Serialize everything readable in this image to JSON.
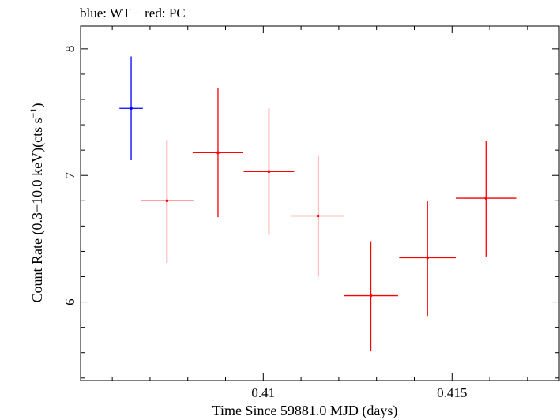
{
  "chart_data": {
    "type": "scatter",
    "title": "blue: WT − red: PC",
    "xlabel": "Time Since 59881.0 MJD (days)",
    "ylabel_main": "Count Rate (0.3−10.0 keV)(cts s",
    "ylabel_sup": "−1",
    "ylabel_end": ")",
    "xlim": [
      0.40516,
      0.41784
    ],
    "ylim": [
      5.38,
      8.18
    ],
    "xticks": [
      {
        "value": 0.41,
        "label": "0.41"
      },
      {
        "value": 0.415,
        "label": "0.415"
      }
    ],
    "xminor_step": 0.001,
    "yticks": [
      {
        "value": 6,
        "label": "6"
      },
      {
        "value": 7,
        "label": "7"
      },
      {
        "value": 8,
        "label": "8"
      }
    ],
    "yminor_step": 0.2,
    "grid": false,
    "series": [
      {
        "color": "#0000ff",
        "points": [
          {
            "x": 0.4065,
            "xerr": 0.00031,
            "y": 7.53,
            "yerr_lo": 0.41,
            "yerr_hi": 0.41
          }
        ]
      },
      {
        "color": "#ff0000",
        "points": [
          {
            "x": 0.40745,
            "xerr": 0.0007,
            "y": 6.8,
            "yerr_lo": 0.49,
            "yerr_hi": 0.48
          },
          {
            "x": 0.4088,
            "xerr": 0.00067,
            "y": 7.18,
            "yerr_lo": 0.51,
            "yerr_hi": 0.51
          },
          {
            "x": 0.41015,
            "xerr": 0.00067,
            "y": 7.03,
            "yerr_lo": 0.5,
            "yerr_hi": 0.5
          },
          {
            "x": 0.41145,
            "xerr": 0.0007,
            "y": 6.68,
            "yerr_lo": 0.48,
            "yerr_hi": 0.48
          },
          {
            "x": 0.41285,
            "xerr": 0.00072,
            "y": 6.05,
            "yerr_lo": 0.44,
            "yerr_hi": 0.43
          },
          {
            "x": 0.41435,
            "xerr": 0.00075,
            "y": 6.35,
            "yerr_lo": 0.46,
            "yerr_hi": 0.45
          },
          {
            "x": 0.4159,
            "xerr": 0.0008,
            "y": 6.82,
            "yerr_lo": 0.46,
            "yerr_hi": 0.45
          }
        ]
      }
    ]
  }
}
